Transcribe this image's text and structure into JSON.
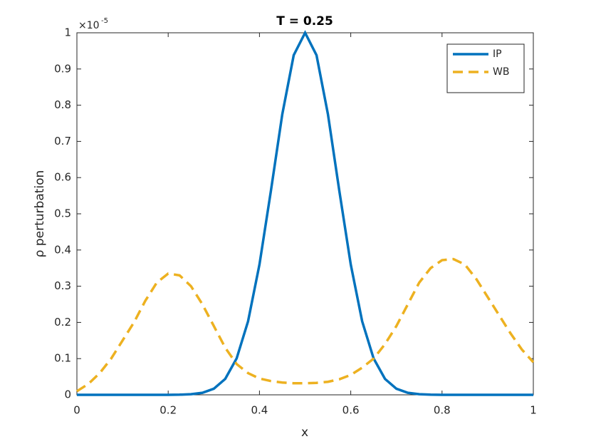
{
  "chart_data": {
    "type": "line",
    "title": "T = 0.25",
    "xlabel": "x",
    "ylabel": "ρ perturbation",
    "y_multiplier": {
      "base": "×10",
      "exponent": "-5"
    },
    "x": [
      0,
      0.025,
      0.05,
      0.075,
      0.1,
      0.125,
      0.15,
      0.175,
      0.2,
      0.225,
      0.25,
      0.275,
      0.3,
      0.325,
      0.35,
      0.375,
      0.4,
      0.425,
      0.45,
      0.475,
      0.5,
      0.525,
      0.55,
      0.575,
      0.6,
      0.625,
      0.65,
      0.675,
      0.7,
      0.725,
      0.75,
      0.775,
      0.8,
      0.825,
      0.85,
      0.875,
      0.9,
      0.925,
      0.95,
      0.975,
      1
    ],
    "series": [
      {
        "name": "IP",
        "color": "#0072bd",
        "line_style": "solid",
        "values": [
          0,
          0,
          0,
          0,
          0,
          0,
          0,
          0,
          0.0001,
          0.0004,
          0.0017,
          0.0057,
          0.0169,
          0.044,
          0.1007,
          0.203,
          0.36,
          0.563,
          0.775,
          0.938,
          1,
          0.938,
          0.775,
          0.563,
          0.36,
          0.203,
          0.1007,
          0.044,
          0.0169,
          0.0057,
          0.0017,
          0.0004,
          0.0001,
          0,
          0,
          0,
          0,
          0,
          0,
          0,
          0
        ]
      },
      {
        "name": "WB",
        "color": "#edb120",
        "line_style": "dashed",
        "values": [
          0.01,
          0.03,
          0.06,
          0.1,
          0.15,
          0.2,
          0.26,
          0.31,
          0.335,
          0.33,
          0.3,
          0.25,
          0.19,
          0.13,
          0.085,
          0.06,
          0.045,
          0.038,
          0.034,
          0.032,
          0.032,
          0.033,
          0.036,
          0.043,
          0.055,
          0.075,
          0.1,
          0.14,
          0.19,
          0.25,
          0.31,
          0.35,
          0.372,
          0.375,
          0.36,
          0.32,
          0.27,
          0.22,
          0.17,
          0.125,
          0.09
        ]
      }
    ],
    "xlim": [
      0,
      1
    ],
    "xticks": [
      0,
      0.2,
      0.4,
      0.6,
      0.8,
      1
    ],
    "ylim": [
      0,
      1
    ],
    "yticks": [
      0,
      0.1,
      0.2,
      0.3,
      0.4,
      0.5,
      0.6,
      0.7,
      0.8,
      0.9,
      1
    ],
    "grid": false,
    "legend": "northeast"
  }
}
